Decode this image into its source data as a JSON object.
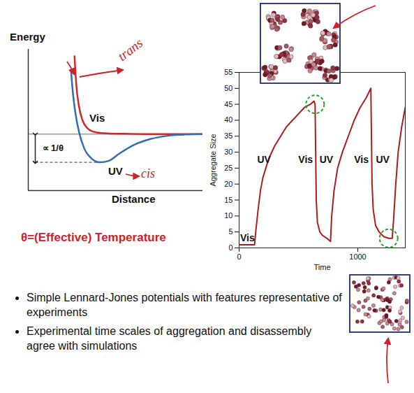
{
  "chart_data": [
    {
      "type": "line",
      "x_label": "Distance",
      "y_label": "Energy",
      "tick_labels": false,
      "xlim": [
        0,
        10
      ],
      "ylim": [
        -4,
        6
      ],
      "series": [
        {
          "name": "Vis",
          "color": "#d62728",
          "annotation": "trans",
          "x": [
            2.65,
            2.75,
            2.9,
            3.1,
            3.4,
            3.8,
            4.5,
            5.5,
            7,
            10
          ],
          "values": [
            5.5,
            3.5,
            2,
            1,
            0.4,
            0.15,
            0.05,
            0.02,
            0,
            0
          ]
        },
        {
          "name": "UV",
          "color": "#2f6db5",
          "annotation": "cis",
          "x": [
            2.45,
            2.55,
            2.7,
            2.9,
            3.2,
            3.6,
            4.1,
            4.6,
            5.2,
            6,
            7,
            8,
            9,
            10
          ],
          "values": [
            4.5,
            3,
            1.5,
            0.2,
            -1,
            -1.7,
            -2,
            -1.9,
            -1.4,
            -0.8,
            -0.35,
            -0.12,
            -0.03,
            0
          ]
        }
      ],
      "well_depth_label": "∝ 1/θ",
      "caption": "θ=(Effective) Temperature"
    },
    {
      "type": "line",
      "x_label": "Time",
      "y_label": "Aggregate Size",
      "xlim": [
        0,
        1400
      ],
      "xticks": [
        0,
        1000
      ],
      "ylim": [
        0,
        55
      ],
      "yticks": [
        0,
        5,
        10,
        15,
        20,
        25,
        30,
        35,
        40,
        45,
        50,
        55
      ],
      "color": "#b01c1c",
      "x": [
        0,
        130,
        140,
        160,
        180,
        200,
        250,
        300,
        350,
        400,
        450,
        500,
        550,
        600,
        630,
        640,
        645,
        650,
        660,
        680,
        700,
        740,
        770,
        780,
        800,
        830,
        870,
        920,
        970,
        1020,
        1070,
        1110,
        1115,
        1120,
        1130,
        1150,
        1180,
        1220,
        1260,
        1290,
        1300,
        1320,
        1340,
        1370,
        1400
      ],
      "values": [
        1,
        1,
        5,
        12,
        18,
        22,
        28,
        32,
        35,
        38,
        40,
        42,
        44,
        45,
        46,
        45,
        30,
        15,
        8,
        5,
        4,
        3,
        2,
        10,
        18,
        25,
        30,
        35,
        40,
        44,
        47,
        50,
        35,
        20,
        12,
        7,
        5,
        3.5,
        3,
        3,
        8,
        20,
        30,
        38,
        44
      ],
      "annotations": [
        {
          "x": 70,
          "label": "Vis"
        },
        {
          "x": 210,
          "label": "UV"
        },
        {
          "x": 560,
          "label": "Vis"
        },
        {
          "x": 735,
          "label": "UV"
        },
        {
          "x": 1030,
          "label": "Vis"
        },
        {
          "x": 1210,
          "label": "UV"
        }
      ]
    }
  ],
  "bullets": [
    "Simple Lennard-Jones potentials with features representative of experiments",
    "Experimental time scales of aggregation and disassembly agree with simulations"
  ]
}
